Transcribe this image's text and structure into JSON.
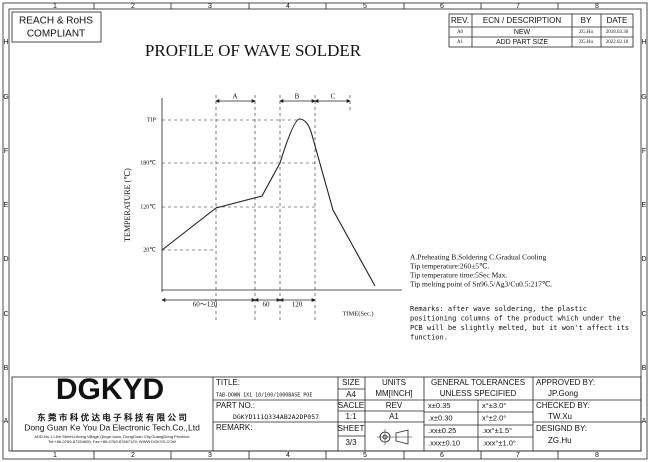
{
  "compliance": [
    "REACH & RoHS",
    "COMPLIANT"
  ],
  "border": {
    "columns": [
      "1",
      "2",
      "3",
      "4",
      "5",
      "6",
      "7",
      "8"
    ],
    "rows": [
      "H",
      "G",
      "F",
      "E",
      "D",
      "C",
      "B",
      "A"
    ]
  },
  "revision_table": {
    "headers": [
      "REV.",
      "ECN / DESCRIPTION",
      "BY",
      "DATE"
    ],
    "rows": [
      [
        "A0",
        "NEW",
        "ZG.Hu",
        "2018.03.30"
      ],
      [
        "A1",
        "ADD PART SIZE",
        "ZG.Hu",
        "2022.02.18"
      ]
    ]
  },
  "title": "PROFILE OF WAVE SOLDER",
  "profile": {
    "y_label": "TEMPERATURE (℃)",
    "x_label": "TIME(Sec.)",
    "levels": [
      "TIP",
      "180℃",
      "120℃",
      "20℃"
    ],
    "zones": [
      "A",
      "B",
      "C"
    ],
    "durations": [
      "60～120",
      "60",
      "120"
    ]
  },
  "notes": [
    "A.Preheating  B.Soldering  C.Gradual Cooling",
    "Tip temperature:260±5℃.",
    "Tip temperature time:5Sec Max.",
    "Tip melting point of Sn96.5/Ag3/Cu0.5:217℃."
  ],
  "remarks": [
    "Remarks: after wave soldering, the plastic",
    "positioning columns of the product  which under the",
    "PCB will be slightly melted, but it won't affect its",
    "function."
  ],
  "title_block": {
    "logo": "DGKYD",
    "company_cn": "东 莞 市 科 优 达 电 子 科 技 有 限 公 司",
    "company_en": "Dong Guan Ke You Da Electronic Tech.Co.,Ltd",
    "address": "ADD:No.1 Lihe Street,Lihong Village,Qingxi town, DongGuan City,GuangDong Province",
    "contact": "Tel:+86-0769-87334605; Fax:+86-0769-87667129; WWW.DGKYD.COM",
    "title_label": "TITLE:",
    "title_value": "TAB-DOWN 1X1 10/100/1000BASE POE",
    "part_no_label": "PART NO.:",
    "part_no": "DGKYD111Q334AB2A2DP057",
    "remark_label": "REMARK:",
    "size_label": "SIZE",
    "size": "A4",
    "scale_label": "SACLE",
    "scale": "1:1",
    "sheet_label": "SHEET",
    "sheet": "3/3",
    "units_label": "UNITS",
    "units": "MM[INCH]",
    "rev_label": "REV",
    "rev": "A1",
    "tolerances_title": [
      "GENERAL TOLERANCES",
      "UNLESS SPECIFIED"
    ],
    "tolerances": [
      [
        "x±0.35",
        "x°±3.0°"
      ],
      [
        ".x±0.30",
        "x°±2.0°"
      ],
      [
        ".xx±0.25",
        ".xx°±1.5°"
      ],
      [
        ".xxx±0.10",
        ".xxx°±1.0°"
      ]
    ],
    "approved_label": "APPROVED BY:",
    "approved": "JP.Gong",
    "checked_label": "CHECKED BY:",
    "checked": "TW.Xu",
    "designed_label": "DESIGND BY:",
    "designed": "ZG.Hu"
  }
}
